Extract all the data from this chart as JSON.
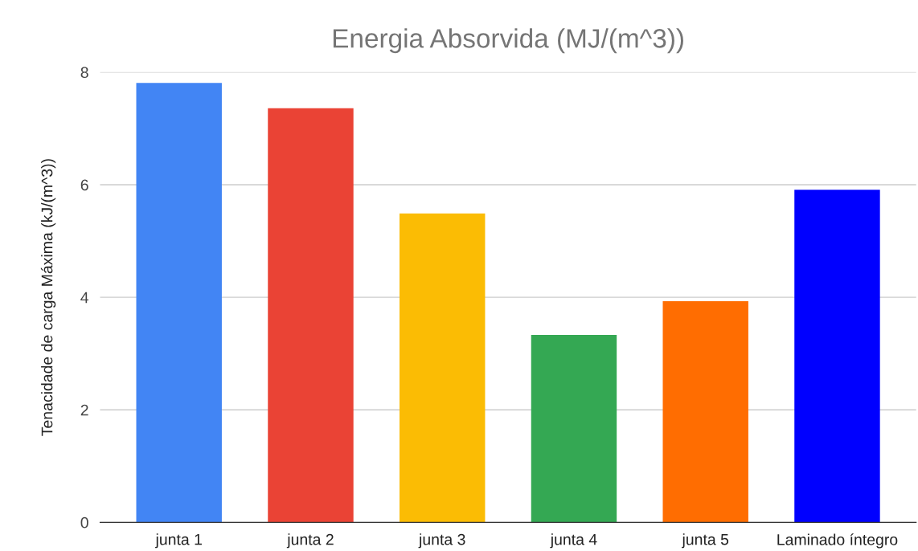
{
  "chart_data": {
    "type": "bar",
    "title": "Energia Absorvida (MJ/(m^3))",
    "ylabel": "Tenacidade de carga Máxima (kJ/(m^3))",
    "categories": [
      "junta 1",
      "junta 2",
      "junta 3",
      "junta 4",
      "junta 5",
      "Laminado íntegro"
    ],
    "values": [
      7.81,
      7.36,
      5.49,
      3.33,
      3.93,
      5.91
    ],
    "colors": [
      "#4285f4",
      "#ea4335",
      "#fbbc04",
      "#34a853",
      "#ff6d01",
      "#0000ff"
    ],
    "ylim": [
      0,
      8
    ],
    "yticks": [
      0,
      2,
      4,
      6,
      8
    ],
    "grid": "y",
    "legend": false
  }
}
